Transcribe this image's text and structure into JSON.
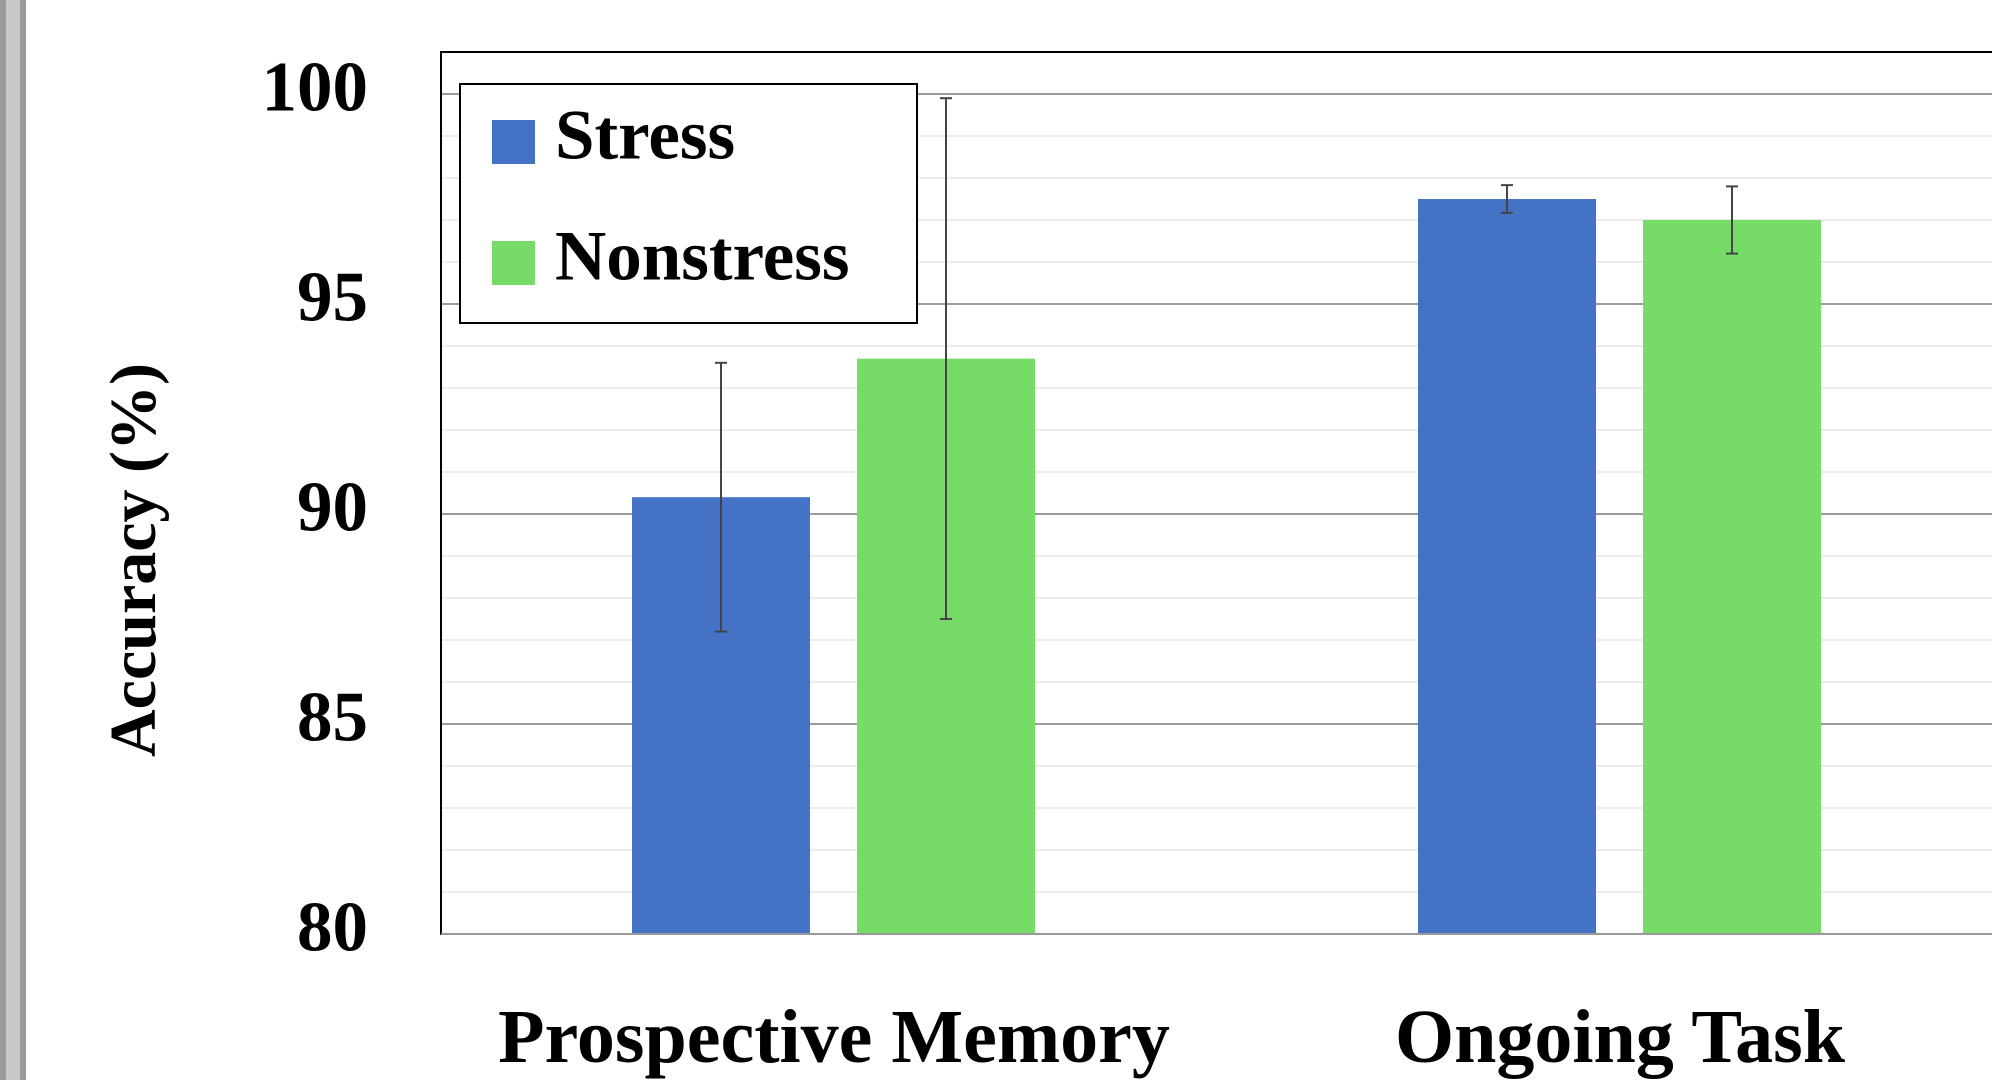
{
  "chart_data": {
    "type": "bar",
    "y_label": "Accuracy (%)",
    "categories": [
      "Prospective Memory",
      "Ongoing Task"
    ],
    "series": [
      {
        "name": "Stress",
        "color": "#4472c4",
        "values": [
          90.4,
          97.5
        ],
        "errors": [
          3.2,
          0.33
        ]
      },
      {
        "name": "Nonstress",
        "color": "#77db68",
        "values": [
          93.7,
          97.0
        ],
        "errors": [
          6.2,
          0.8
        ]
      }
    ],
    "ylim": [
      80,
      101
    ],
    "yticks": [
      80,
      85,
      90,
      95,
      100
    ],
    "grid": true,
    "minor_grid": true,
    "legend": "upper left"
  }
}
